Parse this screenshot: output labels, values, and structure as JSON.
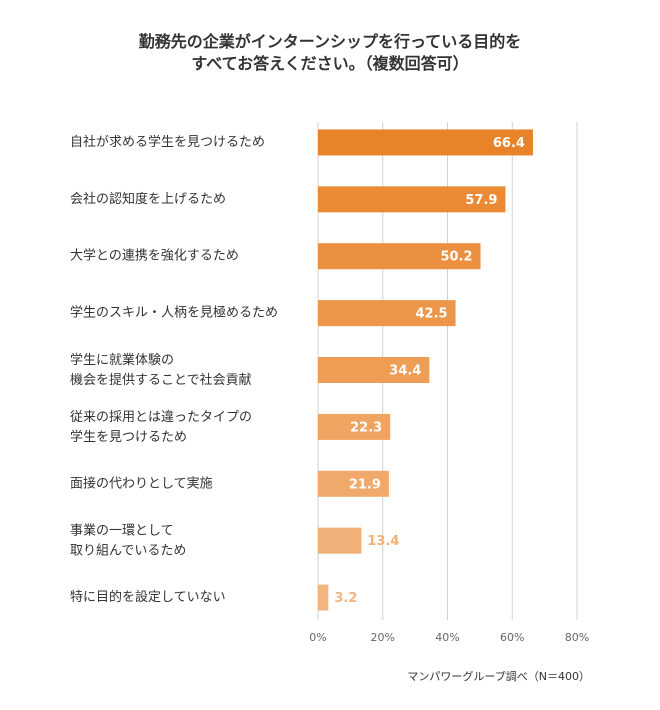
{
  "chart_data": {
    "type": "hbar",
    "title": "勤務先の企業がインターンシップを行っている目的を\nすべてお答えください。（複数回答可）",
    "categories": [
      "自社が求める学生を見つけるため",
      "会社の認知度を上げるため",
      "大学との連携を強化するため",
      "学生のスキル・人柄を見極めるため",
      "学生に就業体験の\n機会を提供することで社会貢献",
      "従来の採用とは違ったタイプの\n学生を見つけるため",
      "面接の代わりとして実施",
      "事業の一環として\n取り組んでいるため",
      "特に目的を設定していない"
    ],
    "values": [
      66.4,
      57.9,
      50.2,
      42.5,
      34.4,
      22.3,
      21.9,
      13.4,
      3.2
    ],
    "colors": [
      "#e8832a",
      "#ea8a34",
      "#eb9040",
      "#ec964a",
      "#ee9d55",
      "#efa462",
      "#f0a96a",
      "#f1b077",
      "#f2b582"
    ],
    "xlim": [
      0,
      80
    ],
    "xticks": [
      {
        "value": 0,
        "label": "0%"
      },
      {
        "value": 20,
        "label": "20%"
      },
      {
        "value": 40,
        "label": "40%"
      },
      {
        "value": 60,
        "label": "60%"
      },
      {
        "value": 80,
        "label": "80%"
      }
    ],
    "grid": true,
    "source": "マンパワーグループ調べ（N＝400）"
  }
}
